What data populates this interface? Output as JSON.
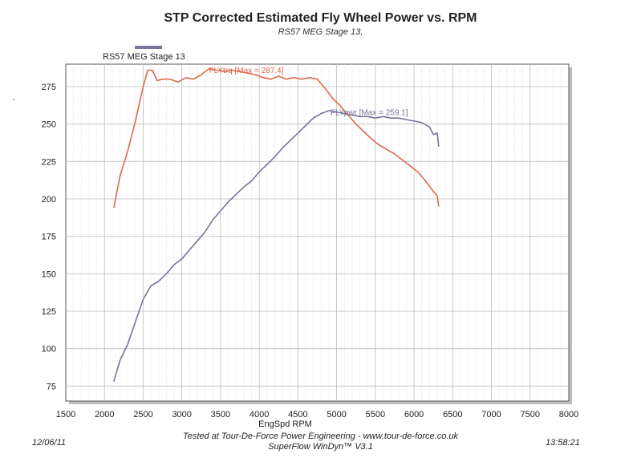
{
  "chart_data": {
    "type": "line",
    "title": "STP Corrected Estimated Fly Wheel Power vs. RPM",
    "subtitle": "RS57 MEG Stage 13,",
    "xlabel": "EngSpd RPM",
    "ylabel": "",
    "xlim": [
      1500,
      8000
    ],
    "ylim": [
      65,
      290
    ],
    "xticks": [
      1500,
      2000,
      2500,
      3000,
      3500,
      4000,
      4500,
      5000,
      5500,
      6000,
      6500,
      7000,
      7500,
      8000
    ],
    "yticks": [
      75,
      100,
      125,
      150,
      175,
      200,
      225,
      250,
      275
    ],
    "grid": true,
    "legend": {
      "position": "top-left",
      "entries": [
        "RS57 MEG Stage 13"
      ]
    },
    "series": [
      {
        "name": "FLYtrq",
        "label": "FLYtrq [Max = 287.4]",
        "color": "#e0684c",
        "x": [
          2120,
          2200,
          2300,
          2400,
          2500,
          2560,
          2620,
          2680,
          2750,
          2850,
          2950,
          3050,
          3150,
          3250,
          3350,
          3450,
          3550,
          3650,
          3750,
          3850,
          3950,
          4050,
          4150,
          4250,
          4350,
          4450,
          4550,
          4650,
          4750,
          4850,
          4950,
          5050,
          5150,
          5250,
          5350,
          5450,
          5550,
          5650,
          5750,
          5850,
          5950,
          6050,
          6150,
          6250,
          6300,
          6320
        ],
        "y": [
          194,
          215,
          232,
          252,
          275,
          286,
          286,
          279,
          280,
          280,
          278,
          281,
          280,
          283,
          287,
          286,
          285,
          286,
          285,
          284,
          283,
          281,
          280,
          282,
          280,
          281,
          280,
          281,
          280,
          274,
          267,
          262,
          256,
          250,
          245,
          240,
          236,
          233,
          230,
          226,
          222,
          218,
          212,
          205,
          202,
          195
        ]
      },
      {
        "name": "FLYpwr",
        "label": "FLYpwr [Max = 259.1]",
        "color": "#7a739a",
        "x": [
          2120,
          2200,
          2300,
          2400,
          2500,
          2600,
          2700,
          2800,
          2900,
          3000,
          3100,
          3200,
          3300,
          3400,
          3500,
          3600,
          3700,
          3800,
          3900,
          4000,
          4100,
          4200,
          4300,
          4400,
          4500,
          4600,
          4700,
          4800,
          4900,
          5000,
          5100,
          5200,
          5300,
          5400,
          5500,
          5600,
          5700,
          5800,
          5900,
          6000,
          6100,
          6200,
          6250,
          6300,
          6320
        ],
        "y": [
          78,
          92,
          103,
          118,
          133,
          142,
          145,
          150,
          156,
          160,
          166,
          172,
          178,
          186,
          192,
          198,
          203,
          208,
          212,
          218,
          223,
          228,
          234,
          239,
          244,
          249,
          254,
          257,
          259,
          258,
          257,
          256,
          255,
          255,
          254,
          255,
          254,
          254,
          253,
          252,
          251,
          248,
          243,
          244,
          235
        ]
      }
    ],
    "annotations": [
      {
        "text": "FLYtrq [Max = 287.4]",
        "x": 3350,
        "y": 284,
        "color": "#e0684c"
      },
      {
        "text": "FLYpwr [Max = 259.1]",
        "x": 4920,
        "y": 256,
        "color": "#7a739a"
      }
    ]
  },
  "legend_label": "RS57 MEG Stage 13",
  "footer": {
    "date": "12/06/11",
    "time": "13:58:21",
    "line1": "Tested at Tour-De-Force Power Engineering - www.tour-de-force.co.uk",
    "line2": "SuperFlow WinDyn™ V3.1"
  },
  "left_mark": "'"
}
